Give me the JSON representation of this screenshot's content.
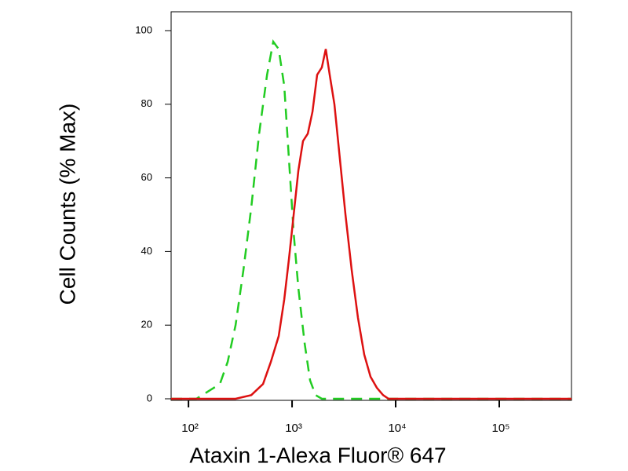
{
  "chart_data": {
    "type": "line",
    "x_label": "Ataxin 1-Alexa Fluor® 647",
    "y_label": "Cell Counts (% Max)",
    "x_scale": "log",
    "xlim": [
      68,
      498000
    ],
    "ylim": [
      0,
      100
    ],
    "xticks": [
      {
        "value": 100,
        "label": "10²"
      },
      {
        "value": 1000,
        "label": "10³"
      },
      {
        "value": 10000,
        "label": "10⁴"
      },
      {
        "value": 100000,
        "label": "10⁵"
      }
    ],
    "yticks": [
      0,
      20,
      40,
      60,
      80,
      100
    ],
    "series": [
      {
        "color": "#22cc22",
        "dashed": true,
        "x": [
          68,
          119,
          155,
          201,
          239,
          285,
          339,
          404,
          481,
          573,
          658,
          743,
          840,
          933,
          1036,
          1150,
          1322,
          1493,
          1687,
          1940,
          498000
        ],
        "values": [
          0,
          0,
          2,
          4,
          10,
          20,
          35,
          52,
          72,
          88,
          97,
          95,
          85,
          65,
          45,
          30,
          15,
          5,
          1,
          0,
          0
        ]
      },
      {
        "color": "#dd1111",
        "dashed": false,
        "x": [
          68,
          285,
          404,
          525,
          624,
          743,
          840,
          933,
          1036,
          1150,
          1276,
          1418,
          1574,
          1747,
          1940,
          2117,
          2310,
          2565,
          2849,
          3275,
          3765,
          4327,
          4975,
          5723,
          6579,
          7563,
          8549,
          498000
        ],
        "values": [
          0,
          0,
          1,
          4,
          10,
          17,
          27,
          38,
          50,
          62,
          70,
          72,
          78,
          88,
          90,
          95,
          88,
          80,
          67,
          50,
          35,
          22,
          12,
          6,
          3,
          1,
          0,
          0
        ]
      }
    ]
  }
}
